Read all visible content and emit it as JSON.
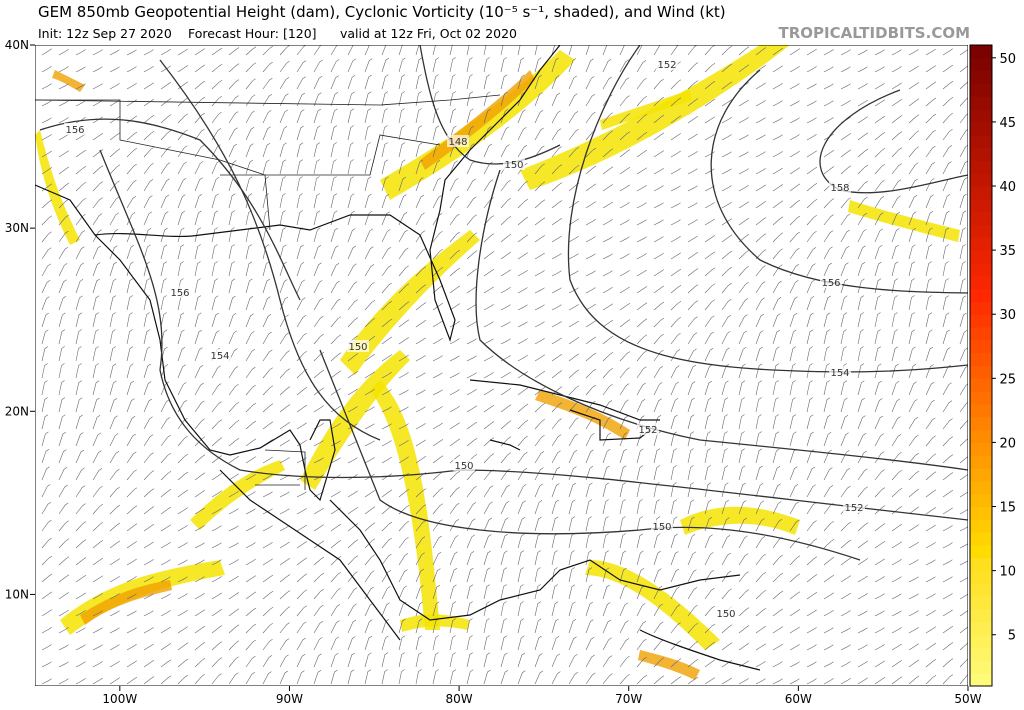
{
  "header": {
    "title": "GEM 850mb Geopotential Height (dam), Cyclonic Vorticity (10⁻⁵ s⁻¹, shaded), and Wind (kt)",
    "init": "Init: 12z Sep 27 2020",
    "forecast_hour": "Forecast Hour: [120]",
    "valid": "valid at 12z Fri, Oct 02 2020",
    "watermark": "TROPICALTIDBITS.COM"
  },
  "map": {
    "lonlim": [
      -105,
      -50
    ],
    "latlim": [
      5,
      40
    ],
    "lon_ticks": [
      {
        "value": -100,
        "label": "100W"
      },
      {
        "value": -90,
        "label": "90W"
      },
      {
        "value": -80,
        "label": "80W"
      },
      {
        "value": -70,
        "label": "70W"
      },
      {
        "value": -60,
        "label": "60W"
      },
      {
        "value": -50,
        "label": "50W"
      }
    ],
    "lat_ticks": [
      {
        "value": 40,
        "label": "40N"
      },
      {
        "value": 30,
        "label": "30N"
      },
      {
        "value": 20,
        "label": "20N"
      },
      {
        "value": 10,
        "label": "10N"
      }
    ],
    "contour_labels": [
      156,
      148,
      150,
      152,
      158,
      156,
      156,
      154,
      150,
      154,
      150,
      152,
      150,
      152,
      150
    ]
  },
  "colorbar": {
    "range": [
      1,
      51
    ],
    "ticks": [
      5,
      10,
      15,
      20,
      25,
      30,
      35,
      40,
      45,
      50
    ]
  }
}
